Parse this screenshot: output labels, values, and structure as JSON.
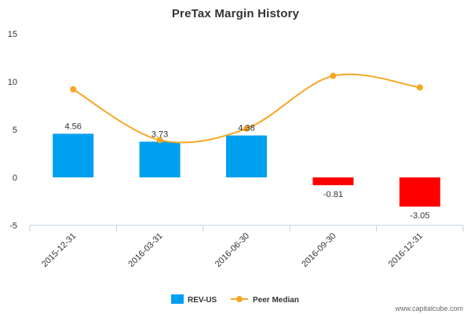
{
  "chart_data": {
    "type": "bar",
    "title": "PreTax Margin History",
    "categories": [
      "2015-12-31",
      "2016-03-31",
      "2016-06-30",
      "2016-09-30",
      "2016-12-31"
    ],
    "series": [
      {
        "name": "REV-US",
        "type": "bar",
        "values": [
          4.56,
          3.73,
          4.38,
          -0.81,
          -3.05
        ],
        "labels": [
          "4.56",
          "3.73",
          "4.38",
          "-0.81",
          "-3.05"
        ],
        "color_positive": "#00a0f0",
        "color_negative": "#ff0000"
      },
      {
        "name": "Peer Median",
        "type": "line",
        "values": [
          9.2,
          3.9,
          5.1,
          10.6,
          9.4
        ],
        "color": "#f5a623"
      }
    ],
    "yticks": [
      15,
      10,
      5,
      0,
      -5
    ],
    "ylim": [
      -5,
      15
    ],
    "xlabel": "",
    "ylabel": "",
    "grid": false,
    "legend_position": "bottom"
  },
  "credit": "www.capitalcube.com"
}
